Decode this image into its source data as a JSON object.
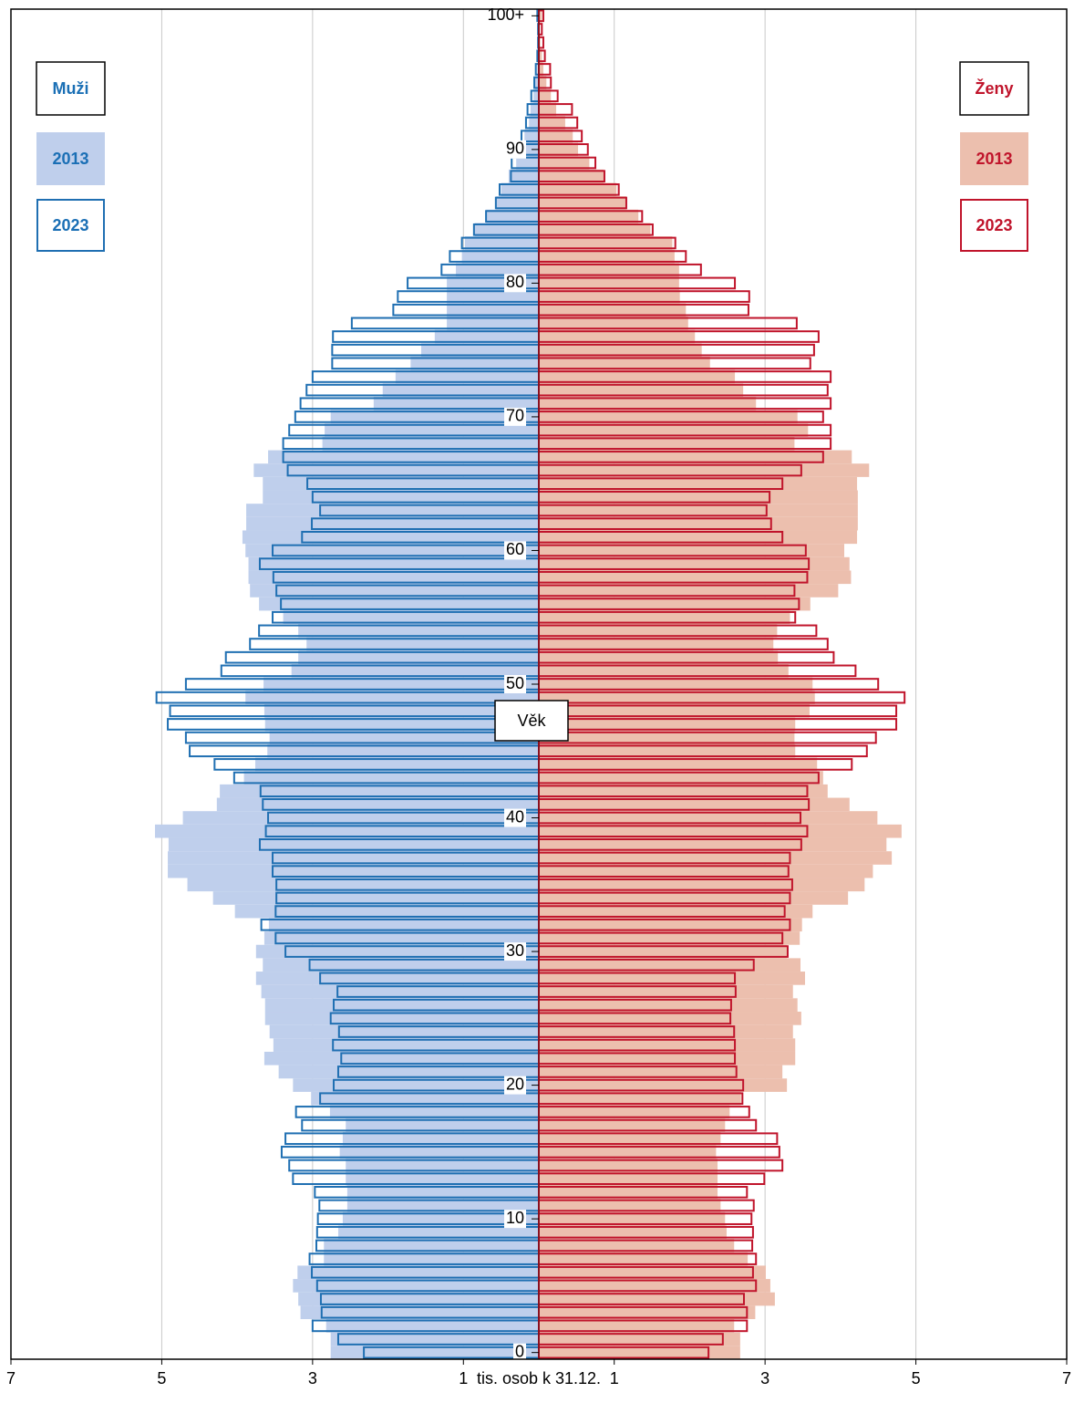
{
  "chart_data": {
    "type": "pyramid",
    "y_label": "Věk",
    "x_label": "tis. osob k 31.12.",
    "categories": [
      "0",
      null,
      null,
      null,
      null,
      null,
      null,
      null,
      null,
      null,
      "10",
      null,
      null,
      null,
      null,
      null,
      null,
      null,
      null,
      null,
      "20",
      null,
      null,
      null,
      null,
      null,
      null,
      null,
      null,
      null,
      "30",
      null,
      null,
      null,
      null,
      null,
      null,
      null,
      null,
      null,
      "40",
      null,
      null,
      null,
      null,
      null,
      null,
      null,
      null,
      null,
      "50",
      null,
      null,
      null,
      null,
      null,
      null,
      null,
      null,
      null,
      "60",
      null,
      null,
      null,
      null,
      null,
      null,
      null,
      null,
      null,
      "70",
      null,
      null,
      null,
      null,
      null,
      null,
      null,
      null,
      null,
      "80",
      null,
      null,
      null,
      null,
      null,
      null,
      null,
      null,
      null,
      "90",
      null,
      null,
      null,
      null,
      null,
      null,
      null,
      null,
      null,
      "100+"
    ],
    "xlim": [
      0,
      7
    ],
    "xticks": [
      1,
      3,
      5,
      7
    ],
    "grid": true,
    "left": {
      "title": "Muži",
      "color": "#1a6fb5",
      "series": [
        {
          "name": "2013",
          "style": "fill",
          "color": "#bfcfec",
          "values": [
            2.76,
            2.76,
            2.82,
            3.16,
            3.19,
            3.26,
            3.2,
            2.85,
            2.85,
            2.66,
            2.6,
            2.54,
            2.54,
            2.56,
            2.56,
            2.64,
            2.6,
            2.56,
            2.77,
            3.02,
            3.26,
            3.45,
            3.64,
            3.52,
            3.57,
            3.63,
            3.63,
            3.68,
            3.75,
            3.66,
            3.75,
            3.64,
            3.58,
            4.03,
            4.32,
            4.66,
            4.92,
            4.92,
            4.91,
            5.09,
            4.72,
            4.27,
            4.23,
            3.91,
            3.76,
            3.6,
            3.57,
            3.63,
            3.64,
            3.89,
            3.65,
            3.28,
            3.19,
            3.08,
            3.19,
            3.39,
            3.71,
            3.83,
            3.85,
            3.85,
            3.89,
            3.93,
            3.88,
            3.88,
            3.66,
            3.66,
            3.78,
            3.59,
            2.87,
            2.84,
            2.76,
            2.19,
            2.07,
            1.9,
            1.7,
            1.56,
            1.38,
            1.22,
            1.22,
            1.22,
            1.22,
            1.1,
            1.02,
            0.98,
            0.85,
            0.7,
            0.57,
            0.5,
            0.4,
            0.3,
            0.25,
            0.19,
            0.13,
            0.11,
            0.07,
            0.05,
            0.02,
            0.01,
            0.01,
            0.01,
            0.01
          ]
        },
        {
          "name": "2023",
          "style": "outline",
          "color": "#1f6fb2",
          "values": [
            2.32,
            2.66,
            3.0,
            2.88,
            2.89,
            2.94,
            3.01,
            3.04,
            2.95,
            2.94,
            2.93,
            2.91,
            2.97,
            3.26,
            3.31,
            3.41,
            3.36,
            3.14,
            3.22,
            2.9,
            2.72,
            2.66,
            2.62,
            2.73,
            2.65,
            2.76,
            2.72,
            2.67,
            2.9,
            3.04,
            3.36,
            3.49,
            3.68,
            3.49,
            3.48,
            3.48,
            3.53,
            3.53,
            3.7,
            3.62,
            3.59,
            3.66,
            3.69,
            4.04,
            4.3,
            4.63,
            4.68,
            4.92,
            4.89,
            5.07,
            4.68,
            4.21,
            4.15,
            3.83,
            3.71,
            3.53,
            3.42,
            3.48,
            3.52,
            3.7,
            3.53,
            3.14,
            3.01,
            2.9,
            3.0,
            3.07,
            3.33,
            3.39,
            3.39,
            3.31,
            3.23,
            3.16,
            3.08,
            3.0,
            2.74,
            2.74,
            2.73,
            2.48,
            1.93,
            1.87,
            1.74,
            1.29,
            1.18,
            1.02,
            0.86,
            0.7,
            0.57,
            0.52,
            0.37,
            0.36,
            0.3,
            0.23,
            0.17,
            0.15,
            0.1,
            0.06,
            0.04,
            0.02,
            0.01,
            0.01,
            0.02
          ]
        }
      ]
    },
    "right": {
      "title": "Ženy",
      "color": "#c0142b",
      "series": [
        {
          "name": "2013",
          "style": "fill",
          "color": "#ecbfae",
          "values": [
            2.67,
            2.67,
            2.59,
            2.87,
            3.13,
            3.07,
            3.01,
            2.77,
            2.59,
            2.49,
            2.47,
            2.41,
            2.37,
            2.37,
            2.37,
            2.35,
            2.41,
            2.47,
            2.53,
            2.68,
            3.29,
            3.23,
            3.4,
            3.4,
            3.37,
            3.48,
            3.43,
            3.37,
            3.53,
            3.47,
            3.29,
            3.46,
            3.49,
            3.63,
            4.1,
            4.32,
            4.43,
            4.68,
            4.61,
            4.81,
            4.49,
            4.12,
            3.83,
            3.77,
            3.69,
            3.4,
            3.39,
            3.4,
            3.59,
            3.66,
            3.63,
            3.31,
            3.17,
            3.11,
            3.16,
            3.33,
            3.6,
            3.97,
            4.14,
            4.12,
            4.05,
            4.22,
            4.23,
            4.23,
            4.23,
            4.22,
            4.38,
            4.15,
            3.39,
            3.57,
            3.43,
            2.88,
            2.71,
            2.6,
            2.27,
            2.16,
            2.07,
            1.98,
            1.95,
            1.87,
            1.86,
            1.86,
            1.8,
            1.77,
            1.48,
            1.32,
            1.16,
            1.03,
            0.86,
            0.67,
            0.52,
            0.45,
            0.35,
            0.23,
            0.16,
            0.1,
            0.06,
            0.04,
            0.02,
            0.01,
            0.04
          ]
        },
        {
          "name": "2023",
          "style": "outline",
          "color": "#c0142b",
          "values": [
            2.25,
            2.44,
            2.76,
            2.76,
            2.72,
            2.88,
            2.84,
            2.88,
            2.83,
            2.84,
            2.82,
            2.85,
            2.76,
            2.99,
            3.23,
            3.19,
            3.16,
            2.88,
            2.79,
            2.7,
            2.71,
            2.62,
            2.6,
            2.6,
            2.59,
            2.54,
            2.55,
            2.61,
            2.6,
            2.85,
            3.3,
            3.23,
            3.33,
            3.26,
            3.33,
            3.36,
            3.31,
            3.33,
            3.48,
            3.56,
            3.47,
            3.58,
            3.56,
            3.71,
            4.15,
            4.35,
            4.47,
            4.74,
            4.74,
            4.85,
            4.5,
            4.2,
            3.91,
            3.83,
            3.68,
            3.4,
            3.45,
            3.39,
            3.56,
            3.58,
            3.54,
            3.23,
            3.08,
            3.02,
            3.06,
            3.23,
            3.48,
            3.77,
            3.87,
            3.87,
            3.77,
            3.87,
            3.83,
            3.87,
            3.6,
            3.65,
            3.71,
            3.42,
            2.78,
            2.79,
            2.6,
            2.15,
            1.95,
            1.81,
            1.51,
            1.37,
            1.16,
            1.06,
            0.87,
            0.75,
            0.65,
            0.57,
            0.51,
            0.44,
            0.25,
            0.16,
            0.15,
            0.08,
            0.06,
            0.04,
            0.06
          ]
        }
      ]
    }
  }
}
